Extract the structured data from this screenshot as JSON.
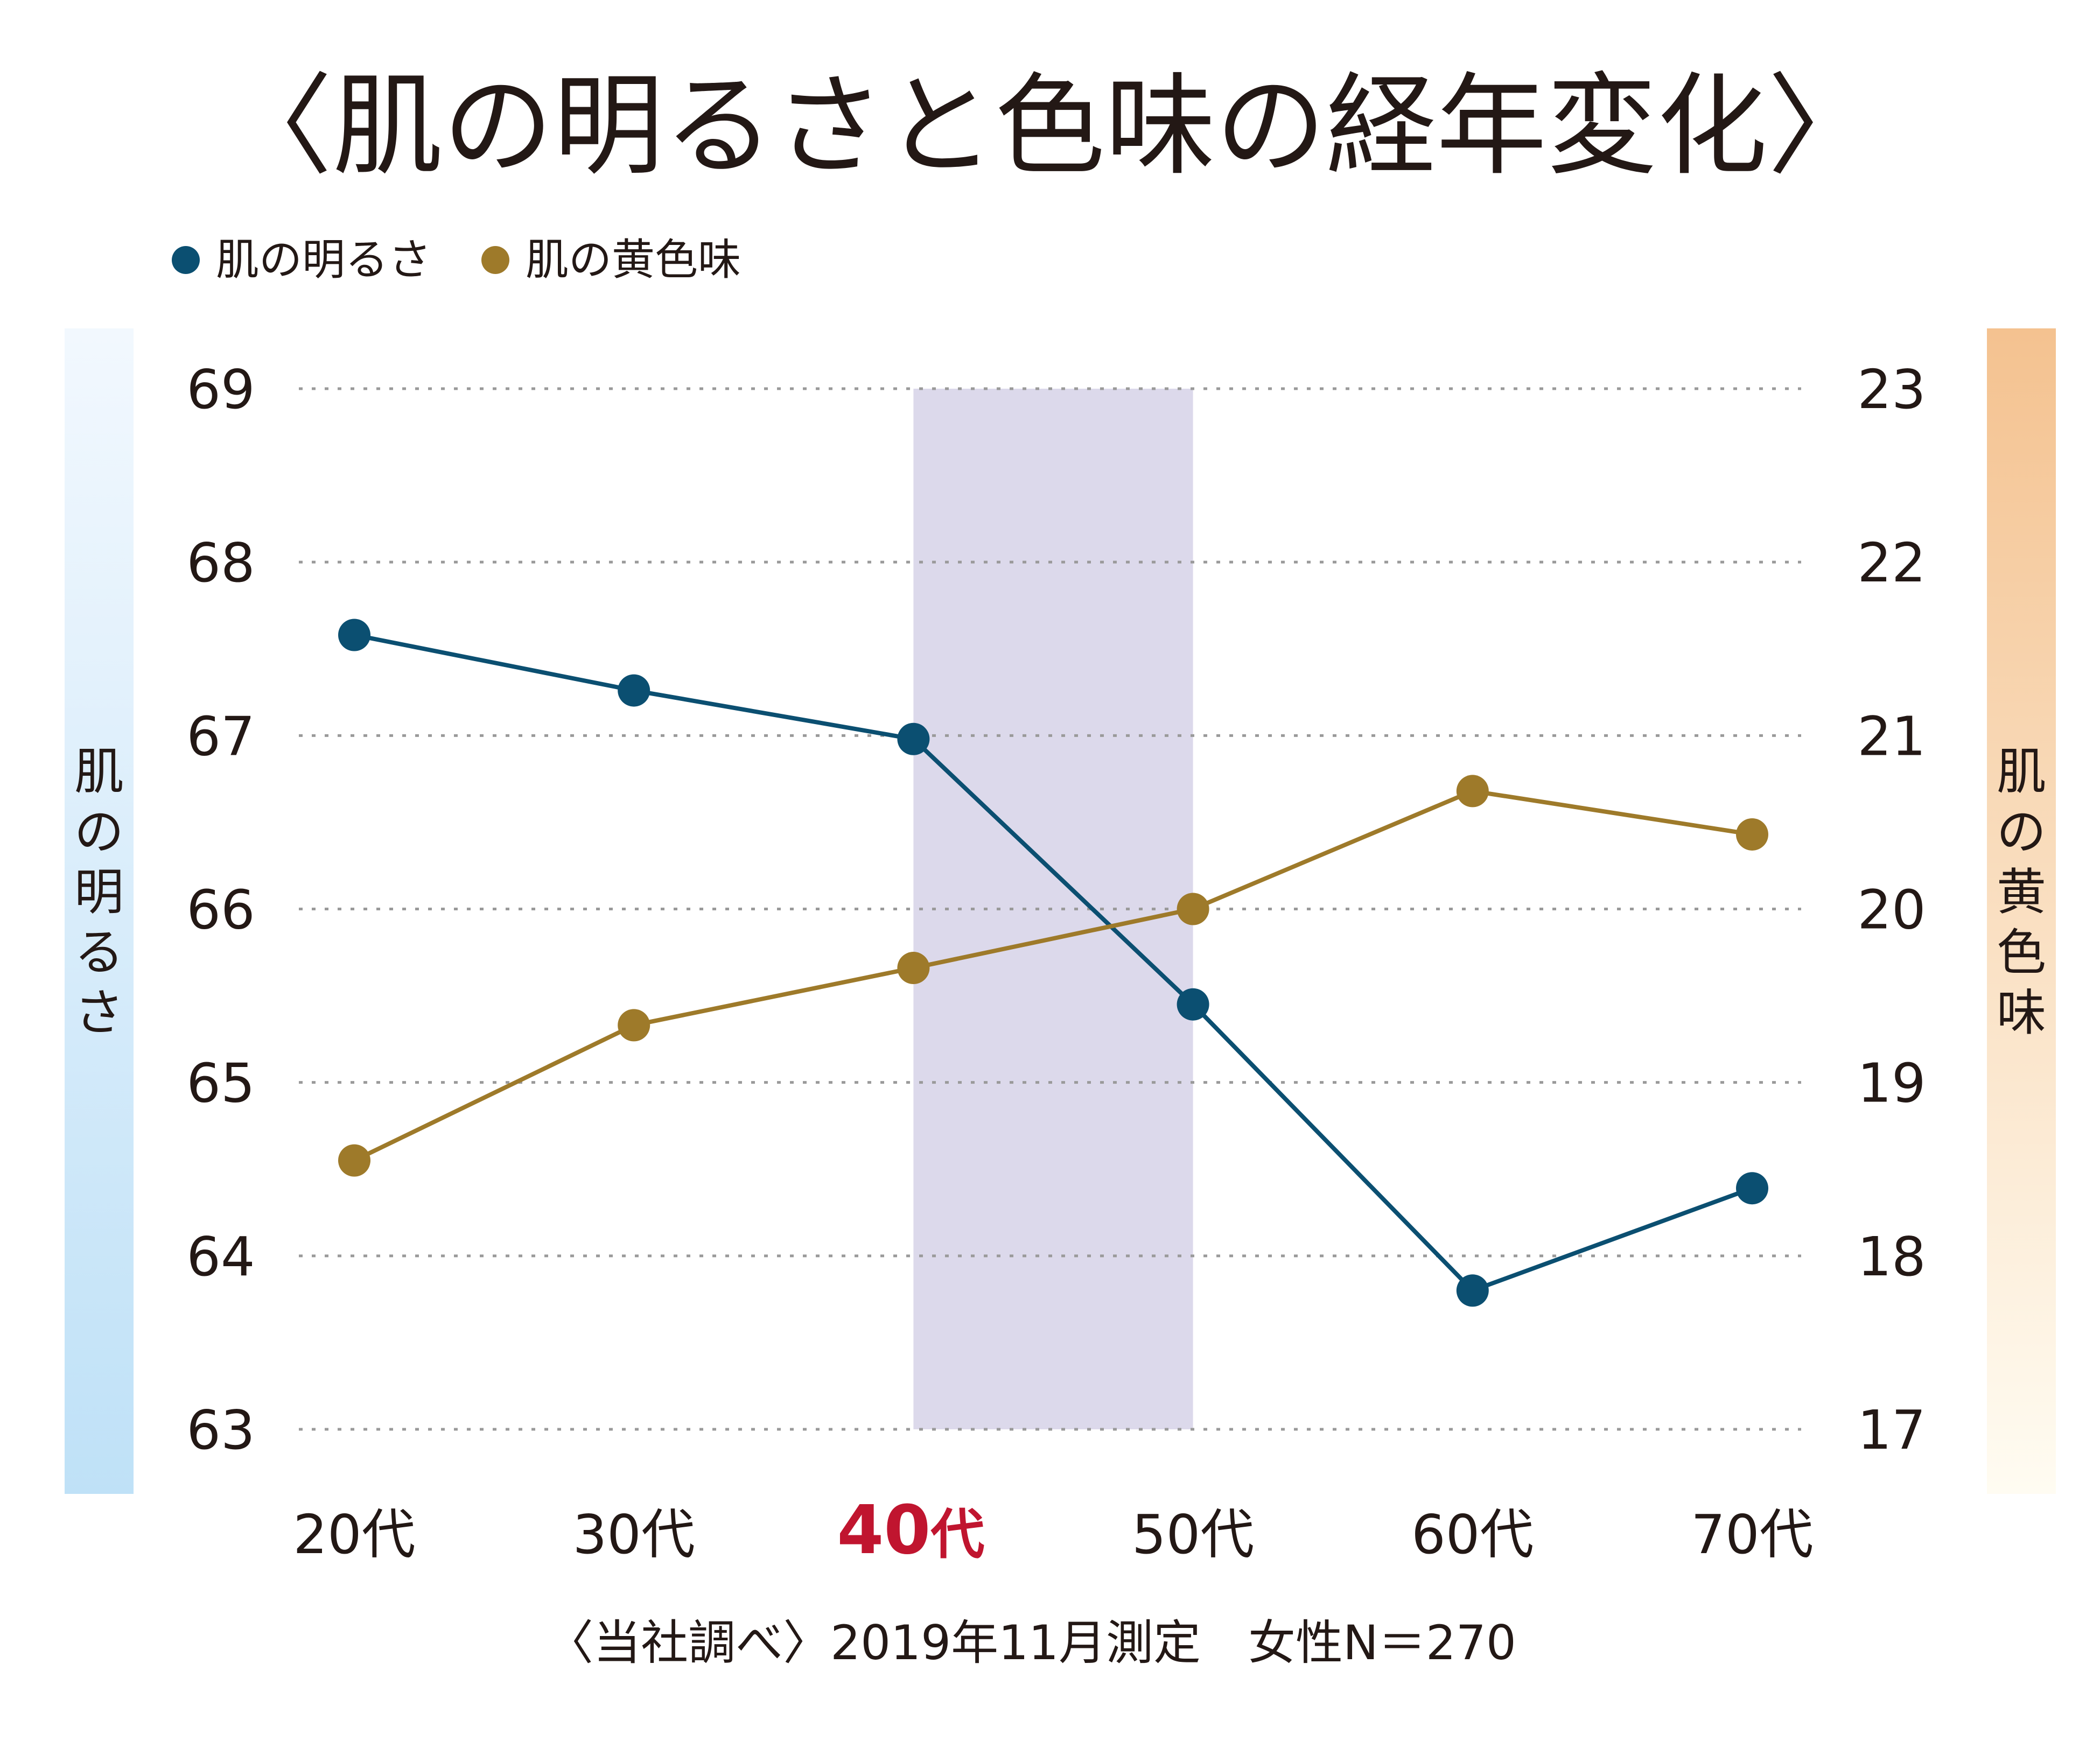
{
  "chart_data": {
    "type": "line",
    "title": "〈肌の明るさと色味の経年変化〉",
    "categories": [
      "20代",
      "30代",
      "40代",
      "50代",
      "60代",
      "70代"
    ],
    "highlight_category": "40代",
    "highlight_color": "#c0152f",
    "highlight_band": {
      "from": "40代",
      "to": "50代",
      "color": "#dcd9eb"
    },
    "y_left": {
      "label": "肌の明るさ",
      "ylim": [
        63,
        69
      ],
      "ticks": [
        "63",
        "64",
        "65",
        "66",
        "67",
        "68",
        "69"
      ]
    },
    "y_right": {
      "label": "肌の黄色味",
      "ylim": [
        17,
        23
      ],
      "ticks": [
        "17",
        "18",
        "19",
        "20",
        "21",
        "22",
        "23"
      ]
    },
    "series": [
      {
        "name": "肌の明るさ",
        "axis": "left",
        "color": "#0b4f71",
        "values": [
          67.58,
          67.26,
          66.98,
          65.45,
          63.8,
          64.39
        ]
      },
      {
        "name": "肌の黄色味",
        "axis": "right",
        "color": "#9e7a2a",
        "values": [
          18.55,
          19.33,
          19.66,
          20.0,
          20.68,
          20.43
        ]
      }
    ],
    "grid": "horizontal-dotted",
    "legend": "top-left",
    "footnote": "〈当社調べ〉2019年11月測定　女性N＝270"
  }
}
